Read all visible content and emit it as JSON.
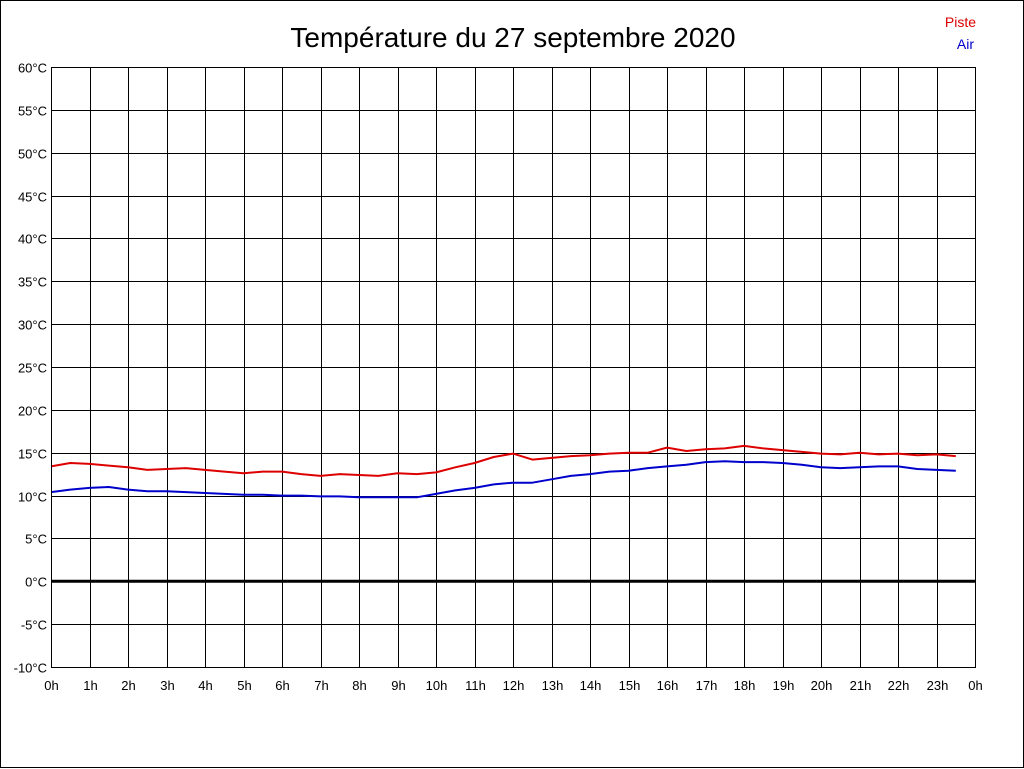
{
  "chart_data": {
    "type": "line",
    "title": "Température du 27 septembre 2020",
    "xlabel": "",
    "ylabel": "",
    "ylim": [
      -10,
      60
    ],
    "y_ticks": [
      60,
      55,
      50,
      45,
      40,
      35,
      30,
      25,
      20,
      15,
      10,
      5,
      0,
      -5,
      -10
    ],
    "y_tick_labels": [
      "60°C",
      "55°C",
      "50°C",
      "45°C",
      "40°C",
      "35°C",
      "30°C",
      "25°C",
      "20°C",
      "15°C",
      "10°C",
      "5°C",
      "0°C",
      "-5°C",
      "-10°C"
    ],
    "x_tick_labels": [
      "0h",
      "1h",
      "2h",
      "3h",
      "4h",
      "5h",
      "6h",
      "7h",
      "8h",
      "9h",
      "10h",
      "11h",
      "12h",
      "13h",
      "14h",
      "15h",
      "16h",
      "17h",
      "18h",
      "19h",
      "20h",
      "21h",
      "22h",
      "23h",
      "0h"
    ],
    "xlim": [
      0,
      24
    ],
    "grid": true,
    "zero_line": true,
    "legend": "top-right",
    "x": [
      0,
      0.5,
      1,
      1.5,
      2,
      2.5,
      3,
      3.5,
      4,
      4.5,
      5,
      5.5,
      6,
      6.5,
      7,
      7.5,
      8,
      8.5,
      9,
      9.5,
      10,
      10.5,
      11,
      11.5,
      12,
      12.5,
      13,
      13.5,
      14,
      14.5,
      15,
      15.5,
      16,
      16.5,
      17,
      17.5,
      18,
      18.5,
      19,
      19.5,
      20,
      20.5,
      21,
      21.5,
      22,
      22.5,
      23,
      23.5
    ],
    "series": [
      {
        "name": "Piste",
        "color": "#dd0000",
        "values": [
          13.4,
          13.8,
          13.7,
          13.5,
          13.3,
          13.0,
          13.1,
          13.2,
          13.0,
          12.8,
          12.6,
          12.8,
          12.8,
          12.5,
          12.3,
          12.5,
          12.4,
          12.3,
          12.6,
          12.5,
          12.7,
          13.3,
          13.8,
          14.5,
          14.9,
          14.2,
          14.4,
          14.6,
          14.7,
          14.9,
          15.0,
          15.0,
          15.6,
          15.2,
          15.4,
          15.5,
          15.8,
          15.5,
          15.3,
          15.1,
          14.9,
          14.8,
          15.0,
          14.8,
          14.9,
          14.7,
          14.8,
          14.6
        ]
      },
      {
        "name": "Air",
        "color": "#0000cc",
        "values": [
          10.4,
          10.7,
          10.9,
          11.0,
          10.7,
          10.5,
          10.5,
          10.4,
          10.3,
          10.2,
          10.1,
          10.1,
          10.0,
          10.0,
          9.9,
          9.9,
          9.8,
          9.8,
          9.8,
          9.8,
          10.2,
          10.6,
          10.9,
          11.3,
          11.5,
          11.5,
          11.9,
          12.3,
          12.5,
          12.8,
          12.9,
          13.2,
          13.4,
          13.6,
          13.9,
          14.0,
          13.9,
          13.9,
          13.8,
          13.6,
          13.3,
          13.2,
          13.3,
          13.4,
          13.4,
          13.1,
          13.0,
          12.9
        ]
      }
    ]
  }
}
